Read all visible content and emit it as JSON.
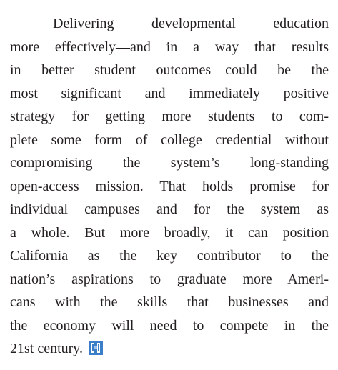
{
  "paragraph": {
    "lines": [
      "Delivering developmental education",
      "more effectively—and in a way that results",
      "in better student outcomes—could be the",
      "most significant and immediately positive",
      "strategy for getting more students to com-",
      "plete some form of college credential without",
      "compromising the system’s long-standing",
      "open-access mission. That holds promise for",
      "individual campuses and for the system as",
      "a whole. But more broadly, it can position",
      "California as the key contributor to the",
      "nation’s aspirations to graduate more Ameri-",
      "cans with the skills that businesses and",
      "the economy will need to compete in the",
      "21st century."
    ]
  }
}
